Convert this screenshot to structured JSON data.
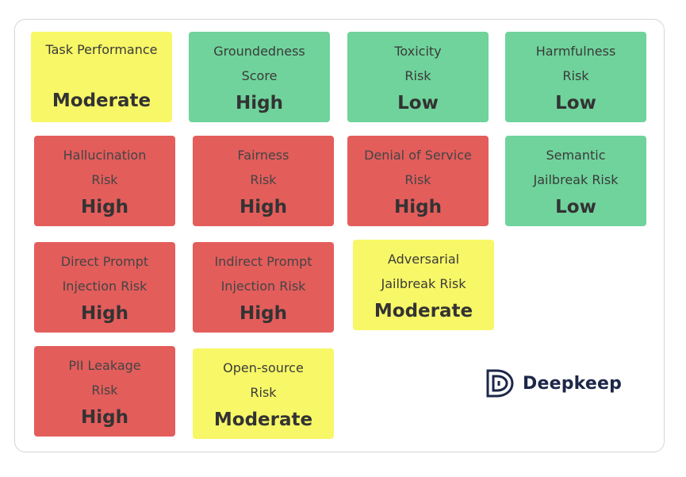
{
  "colors": {
    "moderate": "#f7f767",
    "high": "#e35d5b",
    "low": "#6fd39b",
    "brand": "#1d2748"
  },
  "cards": [
    {
      "line1": "Task Performance",
      "line2": "",
      "level": "Moderate",
      "status": "moderate"
    },
    {
      "line1": "Groundedness",
      "line2": "Score",
      "level": "High",
      "status": "low"
    },
    {
      "line1": "Toxicity",
      "line2": "Risk",
      "level": "Low",
      "status": "low"
    },
    {
      "line1": "Harmfulness",
      "line2": "Risk",
      "level": "Low",
      "status": "low"
    },
    {
      "line1": "Hallucination",
      "line2": "Risk",
      "level": "High",
      "status": "high"
    },
    {
      "line1": "Fairness",
      "line2": "Risk",
      "level": "High",
      "status": "high"
    },
    {
      "line1": "Denial of Service",
      "line2": "Risk",
      "level": "High",
      "status": "high"
    },
    {
      "line1": "Semantic",
      "line2": "Jailbreak Risk",
      "level": "Low",
      "status": "low"
    },
    {
      "line1": "Direct Prompt",
      "line2": "Injection Risk",
      "level": "High",
      "status": "high"
    },
    {
      "line1": "Indirect Prompt",
      "line2": "Injection Risk",
      "level": "High",
      "status": "high"
    },
    {
      "line1": "Adversarial",
      "line2": "Jailbreak Risk",
      "level": "Moderate",
      "status": "moderate"
    },
    {
      "line1": "PII Leakage",
      "line2": "Risk",
      "level": "High",
      "status": "high"
    },
    {
      "line1": "Open-source",
      "line2": "Risk",
      "level": "Moderate",
      "status": "moderate"
    }
  ],
  "logo": {
    "text": "Deepkeep",
    "icon": "deepkeep-logo-icon"
  }
}
